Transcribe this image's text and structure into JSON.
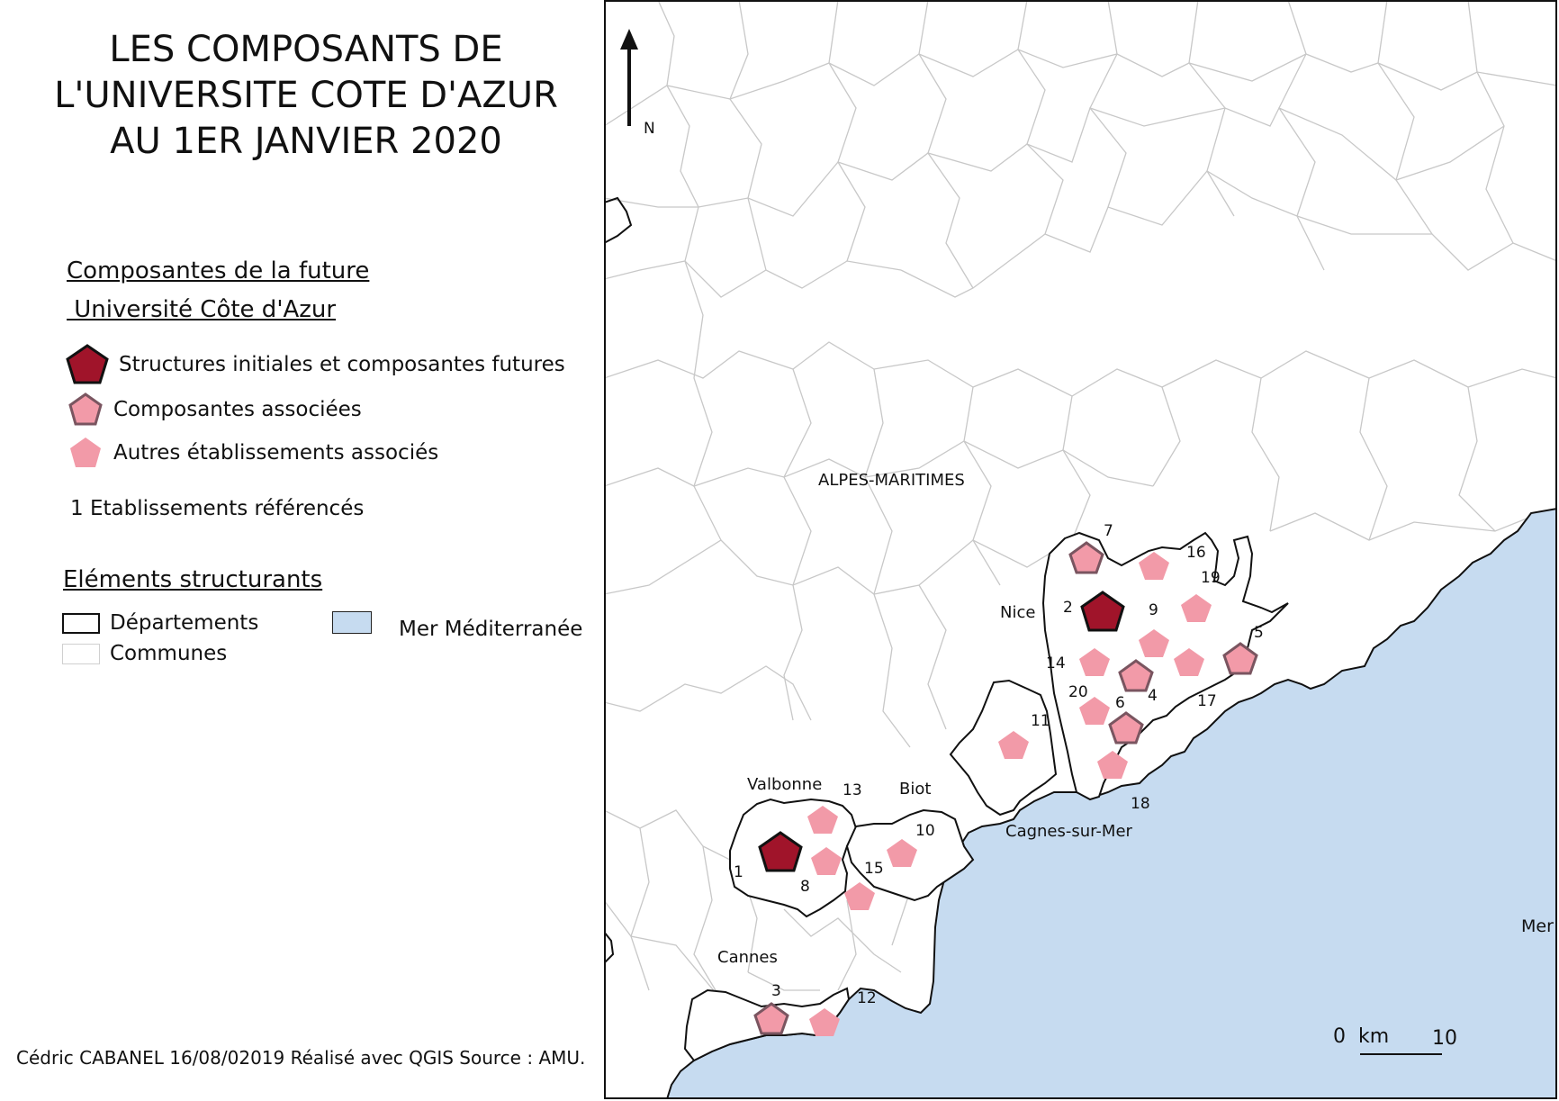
{
  "title": {
    "line1": "LES COMPOSANTS DE",
    "line2": "L'UNIVERSITE COTE D'AZUR",
    "line3": "AU 1ER JANVIER 2020"
  },
  "legend": {
    "heading_line1": "Composantes de la future",
    "heading_line2": " Université Côte d'Azur",
    "items": [
      {
        "label": "Structures initiales et composantes futures",
        "fill": "#a0142a",
        "stroke": "#111111"
      },
      {
        "label": "Composantes associées",
        "fill": "#f29aa8",
        "stroke": "#7a5560"
      },
      {
        "label": "Autres établissements associés",
        "fill": "#f29aa8",
        "stroke": "none"
      }
    ],
    "numbered_note": "1 Etablissements référencés",
    "structure_heading": "Eléments structurants",
    "departements_label": "Départements",
    "communes_label": "Communes",
    "sea_label": "Mer Méditerranée"
  },
  "colors": {
    "sea": "#c6dbf0",
    "initial_fill": "#a0142a",
    "associated_fill": "#f29aa8",
    "associated_stroke": "#7a5560",
    "commune_stroke": "#c8c8c8"
  },
  "map": {
    "north_label": "N",
    "department_label": "ALPES-MARITIMES",
    "sea_label": "Mer Méditerranée",
    "place_labels": [
      "Nice",
      "Valbonne",
      "Biot",
      "Cagnes-sur-Mer",
      "Cannes"
    ],
    "numbers": [
      "1",
      "2",
      "3",
      "4",
      "5",
      "6",
      "7",
      "8",
      "9",
      "10",
      "11",
      "12",
      "13",
      "14",
      "15",
      "16",
      "17",
      "18",
      "19",
      "20"
    ],
    "scale": {
      "start": "0",
      "unit": "km",
      "end": "10"
    }
  },
  "credit": "Cédric CABANEL  16/08/02019 Réalisé avec QGIS  Source : AMU."
}
